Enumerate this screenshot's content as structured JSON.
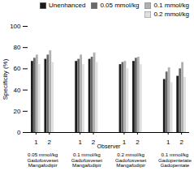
{
  "chart_data": {
    "type": "bar",
    "ylabel": "Specificity (%)",
    "xlabel": "Observer",
    "categories": [
      "1",
      "2",
      "1",
      "2",
      "1",
      "2",
      "1",
      "2"
    ],
    "group_labels": [
      "0.05 mmol/kg\nGadofosveset Mangafodipir",
      "0.1 mmol/kg\nGadofosveset Mangafodipir",
      "0.2 mmol/kg\nGadofosveset Mangafodipir",
      "0.1 mmol/kg\nGadopentetate\nGadopentate"
    ],
    "series": [
      {
        "name": "Unenhanced",
        "color": "#1a1a1a",
        "values": [
          67,
          69,
          67,
          69,
          64,
          67,
          50,
          53
        ]
      },
      {
        "name": "0.05 mmol/kg",
        "color": "#696969",
        "values": [
          70,
          73,
          69,
          71,
          66,
          70,
          57,
          60
        ]
      },
      {
        "name": "0.1 mmol/kg",
        "color": "#b0b0b0",
        "values": [
          73,
          77,
          73,
          75,
          67,
          71,
          61,
          66
        ]
      },
      {
        "name": "0.2 mmol/kg",
        "color": "#e0e0e0",
        "values": [
          64,
          66,
          64,
          66,
          60,
          64,
          47,
          52
        ]
      }
    ],
    "ylim": [
      0,
      100
    ],
    "yticks": [
      0,
      20,
      40,
      60,
      80,
      100
    ],
    "grid": false,
    "legend": "upper right"
  }
}
